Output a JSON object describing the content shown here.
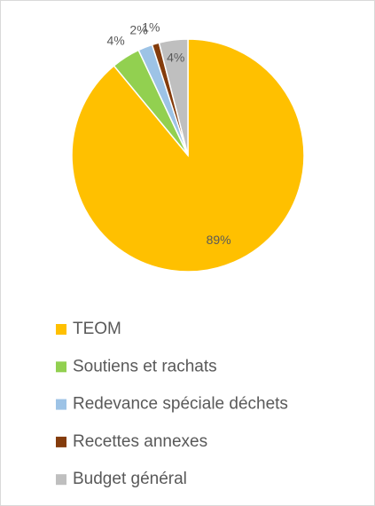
{
  "chart_data": {
    "type": "pie",
    "categories": [
      "TEOM",
      "Soutiens et rachats",
      "Redevance spéciale déchets",
      "Recettes annexes",
      "Budget général"
    ],
    "values": [
      89,
      4,
      2,
      1,
      4
    ],
    "value_labels": [
      "89%",
      "4%",
      "2%",
      "1%",
      "4%"
    ],
    "colors": [
      "#FFC000",
      "#92D050",
      "#9DC3E6",
      "#843C0C",
      "#BFBFBF"
    ],
    "legend": "bottom"
  }
}
